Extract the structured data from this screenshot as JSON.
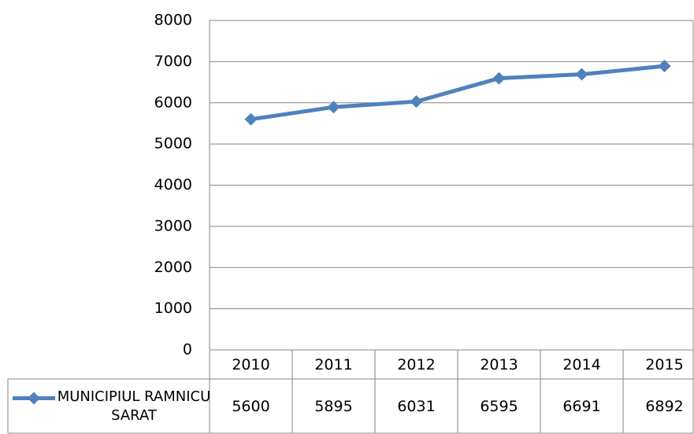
{
  "chart_data": {
    "type": "line",
    "categories": [
      "2010",
      "2011",
      "2012",
      "2013",
      "2014",
      "2015"
    ],
    "series": [
      {
        "name": "MUNICIPIUL RAMNICU SARAT",
        "color": "#4f81bd",
        "values": [
          5600,
          5895,
          6031,
          6595,
          6691,
          6892
        ]
      }
    ],
    "ylim": [
      0,
      8000
    ],
    "yticks": [
      0,
      1000,
      2000,
      3000,
      4000,
      5000,
      6000,
      7000,
      8000
    ],
    "grid": true,
    "data_table": true
  }
}
